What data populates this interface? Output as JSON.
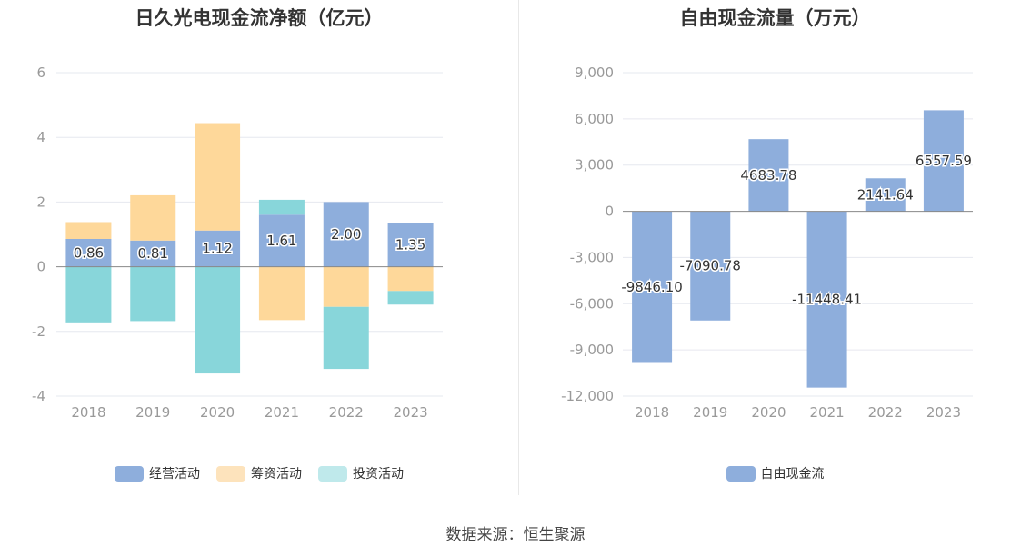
{
  "source": "数据来源：恒生聚源",
  "colors": {
    "operating": "#8eaedc",
    "financing": "#fed89a",
    "investing": "#88d6da",
    "fcf": "#8eaedc",
    "grid": "#e6e8ef",
    "axis": "#999999"
  },
  "chart_data": [
    {
      "type": "bar",
      "stacked": true,
      "title": "日久光电现金流净额（亿元）",
      "categories": [
        "2018",
        "2019",
        "2020",
        "2021",
        "2022",
        "2023"
      ],
      "ylim": [
        -4,
        6
      ],
      "yticks": [
        "6",
        "4",
        "2",
        "0",
        "-2",
        "-4"
      ],
      "grid": true,
      "legend_position": "bottom",
      "series": [
        {
          "name": "经营活动",
          "values": [
            0.86,
            0.81,
            1.12,
            1.61,
            2.0,
            1.35
          ],
          "labels": [
            "0.86",
            "0.81",
            "1.12",
            "1.61",
            "2.00",
            "1.35"
          ]
        },
        {
          "name": "筹资活动",
          "values": [
            0.52,
            1.4,
            3.32,
            -1.65,
            -1.24,
            -0.75
          ]
        },
        {
          "name": "投资活动",
          "values": [
            -1.72,
            -1.68,
            -3.3,
            0.46,
            -1.92,
            -0.42
          ]
        }
      ]
    },
    {
      "type": "bar",
      "title": "自由现金流量（万元）",
      "categories": [
        "2018",
        "2019",
        "2020",
        "2021",
        "2022",
        "2023"
      ],
      "ylim": [
        -12000,
        9000
      ],
      "yticks": [
        "9,000",
        "6,000",
        "3,000",
        "0",
        "-3,000",
        "-6,000",
        "-9,000",
        "-12,000"
      ],
      "grid": true,
      "legend_position": "bottom",
      "series": [
        {
          "name": "自由现金流",
          "values": [
            -9846.1,
            -7090.78,
            4683.78,
            -11448.41,
            2141.64,
            6557.59
          ],
          "labels": [
            "-9846.10",
            "-7090.78",
            "4683.78",
            "-11448.41",
            "2141.64",
            "6557.59"
          ]
        }
      ]
    }
  ]
}
